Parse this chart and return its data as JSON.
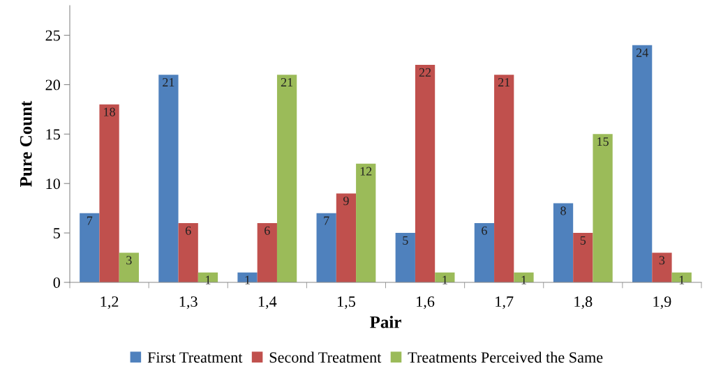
{
  "chart_data": {
    "type": "bar",
    "xlabel": "Pair",
    "ylabel": "Pure Count",
    "categories": [
      "1,2",
      "1,3",
      "1,4",
      "1,5",
      "1,6",
      "1,7",
      "1,8",
      "1,9"
    ],
    "series": [
      {
        "name": "First Treatment",
        "color": "#4f81bd",
        "values": [
          7,
          21,
          1,
          7,
          5,
          6,
          8,
          24
        ]
      },
      {
        "name": "Second Treatment",
        "color": "#c0504d",
        "values": [
          18,
          6,
          6,
          9,
          22,
          21,
          5,
          3
        ]
      },
      {
        "name": "Treatments Perceived the Same",
        "color": "#9bbb59",
        "values": [
          3,
          1,
          21,
          12,
          1,
          1,
          15,
          1
        ]
      }
    ],
    "ylim": [
      0,
      28
    ],
    "yticks": [
      0,
      5,
      10,
      15,
      20,
      25
    ],
    "grid": false,
    "legend": "bottom",
    "data_labels": true
  }
}
